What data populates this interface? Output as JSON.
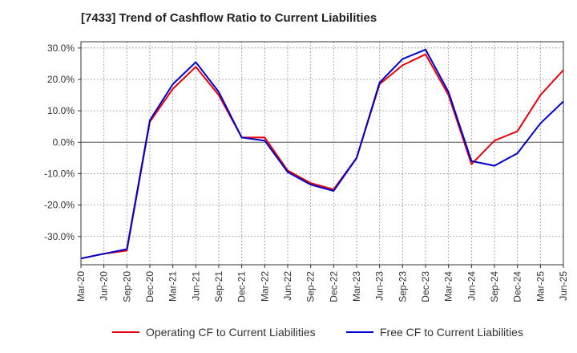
{
  "chart_data": {
    "type": "line",
    "title": "[7433]  Trend of Cashflow Ratio to Current Liabilities",
    "xlabel": "",
    "ylabel": "",
    "x_tick_labels": [
      "Mar-20",
      "Jun-20",
      "Sep-20",
      "Dec-20",
      "Mar-21",
      "Jun-21",
      "Sep-21",
      "Dec-21",
      "Mar-22",
      "Jun-22",
      "Sep-22",
      "Dec-22",
      "Mar-23",
      "Jun-23",
      "Sep-23",
      "Dec-23",
      "Mar-24",
      "Jun-24",
      "Sep-24",
      "Dec-24",
      "Mar-25",
      "Jun-25"
    ],
    "y_ticks": [
      30,
      20,
      10,
      0,
      -10,
      -20,
      -30
    ],
    "y_tick_labels": [
      "30.0%",
      "20.0%",
      "10.0%",
      "0.0%",
      "-10.0%",
      "-20.0%",
      "-30.0%"
    ],
    "ylim": [
      -39,
      32
    ],
    "grid": true,
    "legend_position": "bottom",
    "series": [
      {
        "name": "Operating CF to Current Liabilities",
        "color": "#e8000b",
        "values": [
          -37.0,
          -35.5,
          -34.5,
          6.5,
          17.0,
          24.0,
          15.0,
          1.5,
          1.5,
          -9.0,
          -13.0,
          -15.0,
          -5.0,
          18.5,
          24.5,
          28.0,
          15.0,
          -7.0,
          0.5,
          3.5,
          15.0,
          23.0
        ]
      },
      {
        "name": "Free CF to Current Liabilities",
        "color": "#0000cc",
        "values": [
          -37.0,
          -35.5,
          -34.0,
          7.0,
          18.5,
          25.5,
          16.0,
          1.5,
          0.5,
          -9.5,
          -13.5,
          -15.5,
          -5.0,
          19.0,
          26.5,
          29.5,
          16.0,
          -6.0,
          -7.5,
          -3.5,
          6.0,
          13.0
        ]
      }
    ]
  }
}
